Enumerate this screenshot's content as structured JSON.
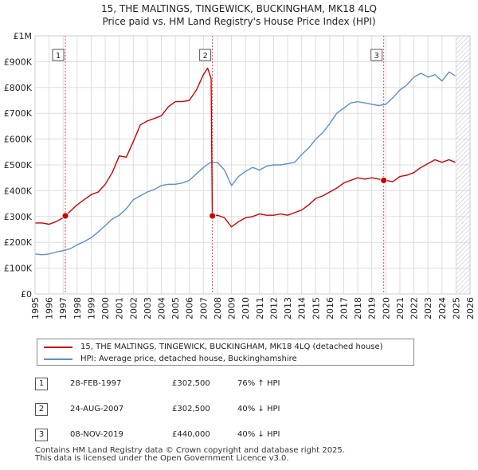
{
  "chart_data": {
    "type": "line",
    "title": "15, THE MALTINGS, TINGEWICK, BUCKINGHAM, MK18 4LQ",
    "subtitle": "Price paid vs. HM Land Registry's House Price Index (HPI)",
    "xlabel": "",
    "ylabel": "",
    "xlim": [
      1995,
      2026
    ],
    "ylim": [
      0,
      1000000
    ],
    "x_ticks": [
      "1995",
      "1996",
      "1997",
      "1998",
      "1999",
      "2000",
      "2001",
      "2002",
      "2003",
      "2004",
      "2005",
      "2006",
      "2007",
      "2008",
      "2009",
      "2010",
      "2011",
      "2012",
      "2013",
      "2014",
      "2015",
      "2016",
      "2017",
      "2018",
      "2019",
      "2020",
      "2021",
      "2022",
      "2023",
      "2024",
      "2025",
      "2026"
    ],
    "y_ticks": [
      {
        "value": 0,
        "label": "£0"
      },
      {
        "value": 100000,
        "label": "£100K"
      },
      {
        "value": 200000,
        "label": "£200K"
      },
      {
        "value": 300000,
        "label": "£300K"
      },
      {
        "value": 400000,
        "label": "£400K"
      },
      {
        "value": 500000,
        "label": "£500K"
      },
      {
        "value": 600000,
        "label": "£600K"
      },
      {
        "value": 700000,
        "label": "£700K"
      },
      {
        "value": 800000,
        "label": "£800K"
      },
      {
        "value": 900000,
        "label": "£900K"
      },
      {
        "value": 1000000,
        "label": "£1M"
      }
    ],
    "grid": true,
    "future_hatch_from": 2025.0,
    "series": [
      {
        "name": "15, THE MALTINGS, TINGEWICK, BUCKINGHAM, MK18 4LQ (detached house)",
        "color": "#cc0000",
        "x": [
          1995.0,
          1995.5,
          1996.0,
          1996.5,
          1997.0,
          1997.16,
          1997.5,
          1998.0,
          1998.5,
          1999.0,
          1999.5,
          2000.0,
          2000.5,
          2001.0,
          2001.5,
          2002.0,
          2002.5,
          2003.0,
          2003.5,
          2004.0,
          2004.5,
          2005.0,
          2005.5,
          2006.0,
          2006.5,
          2007.0,
          2007.3,
          2007.55,
          2007.63,
          2007.64,
          2008.0,
          2008.5,
          2009.0,
          2009.5,
          2010.0,
          2010.5,
          2011.0,
          2011.5,
          2012.0,
          2012.5,
          2013.0,
          2013.5,
          2014.0,
          2014.5,
          2015.0,
          2015.5,
          2016.0,
          2016.5,
          2017.0,
          2017.5,
          2018.0,
          2018.5,
          2019.0,
          2019.5,
          2019.85,
          2020.0,
          2020.5,
          2021.0,
          2021.5,
          2022.0,
          2022.5,
          2023.0,
          2023.5,
          2024.0,
          2024.5,
          2024.95
        ],
        "values": [
          275000,
          275000,
          270000,
          280000,
          295000,
          302500,
          320000,
          345000,
          365000,
          385000,
          395000,
          425000,
          470000,
          535000,
          530000,
          590000,
          655000,
          670000,
          680000,
          690000,
          725000,
          745000,
          745000,
          750000,
          790000,
          850000,
          875000,
          835000,
          305000,
          302500,
          305000,
          295000,
          260000,
          280000,
          295000,
          300000,
          310000,
          305000,
          305000,
          310000,
          305000,
          315000,
          325000,
          345000,
          370000,
          380000,
          395000,
          410000,
          430000,
          440000,
          450000,
          445000,
          450000,
          445000,
          440000,
          440000,
          435000,
          455000,
          460000,
          470000,
          490000,
          505000,
          520000,
          510000,
          520000,
          510000
        ]
      },
      {
        "name": "HPI: Average price, detached house, Buckinghamshire",
        "color": "#5b8fcf",
        "x": [
          1995.0,
          1995.5,
          1996.0,
          1996.5,
          1997.0,
          1997.5,
          1998.0,
          1998.5,
          1999.0,
          1999.5,
          2000.0,
          2000.5,
          2001.0,
          2001.5,
          2002.0,
          2002.5,
          2003.0,
          2003.5,
          2004.0,
          2004.5,
          2005.0,
          2005.5,
          2006.0,
          2006.5,
          2007.0,
          2007.5,
          2008.0,
          2008.5,
          2009.0,
          2009.5,
          2010.0,
          2010.5,
          2011.0,
          2011.5,
          2012.0,
          2012.5,
          2013.0,
          2013.5,
          2014.0,
          2014.5,
          2015.0,
          2015.5,
          2016.0,
          2016.5,
          2017.0,
          2017.5,
          2018.0,
          2018.5,
          2019.0,
          2019.5,
          2020.0,
          2020.5,
          2021.0,
          2021.5,
          2022.0,
          2022.5,
          2023.0,
          2023.5,
          2024.0,
          2024.5,
          2024.95
        ],
        "values": [
          155000,
          152000,
          155000,
          162000,
          168000,
          175000,
          190000,
          203000,
          218000,
          240000,
          265000,
          290000,
          305000,
          330000,
          365000,
          380000,
          395000,
          405000,
          420000,
          425000,
          425000,
          430000,
          440000,
          465000,
          490000,
          510000,
          510000,
          480000,
          420000,
          455000,
          475000,
          490000,
          480000,
          495000,
          500000,
          500000,
          505000,
          510000,
          540000,
          565000,
          600000,
          625000,
          660000,
          700000,
          720000,
          740000,
          745000,
          740000,
          735000,
          730000,
          735000,
          760000,
          790000,
          810000,
          840000,
          855000,
          840000,
          850000,
          825000,
          860000,
          845000
        ]
      }
    ],
    "sales": [
      {
        "label": "1",
        "x": 1997.16,
        "value": 302500
      },
      {
        "label": "2",
        "x": 2007.64,
        "value": 302500
      },
      {
        "label": "3",
        "x": 2019.85,
        "value": 440000
      }
    ]
  },
  "legend": {
    "property_label": "15, THE MALTINGS, TINGEWICK, BUCKINGHAM, MK18 4LQ (detached house)",
    "hpi_label": "HPI: Average price, detached house, Buckinghamshire"
  },
  "table": [
    {
      "num": "1",
      "date": "28-FEB-1997",
      "price": "£302,500",
      "hpi": "76% ↑ HPI"
    },
    {
      "num": "2",
      "date": "24-AUG-2007",
      "price": "£302,500",
      "hpi": "40% ↓ HPI"
    },
    {
      "num": "3",
      "date": "08-NOV-2019",
      "price": "£440,000",
      "hpi": "40% ↓ HPI"
    }
  ],
  "footer": {
    "line1": "Contains HM Land Registry data © Crown copyright and database right 2025.",
    "line2": "This data is licensed under the Open Government Licence v3.0."
  },
  "colors": {
    "property": "#cc0000",
    "hpi": "#5b8fcf",
    "grid": "#dddddd",
    "marker_line": "#cc0000"
  }
}
